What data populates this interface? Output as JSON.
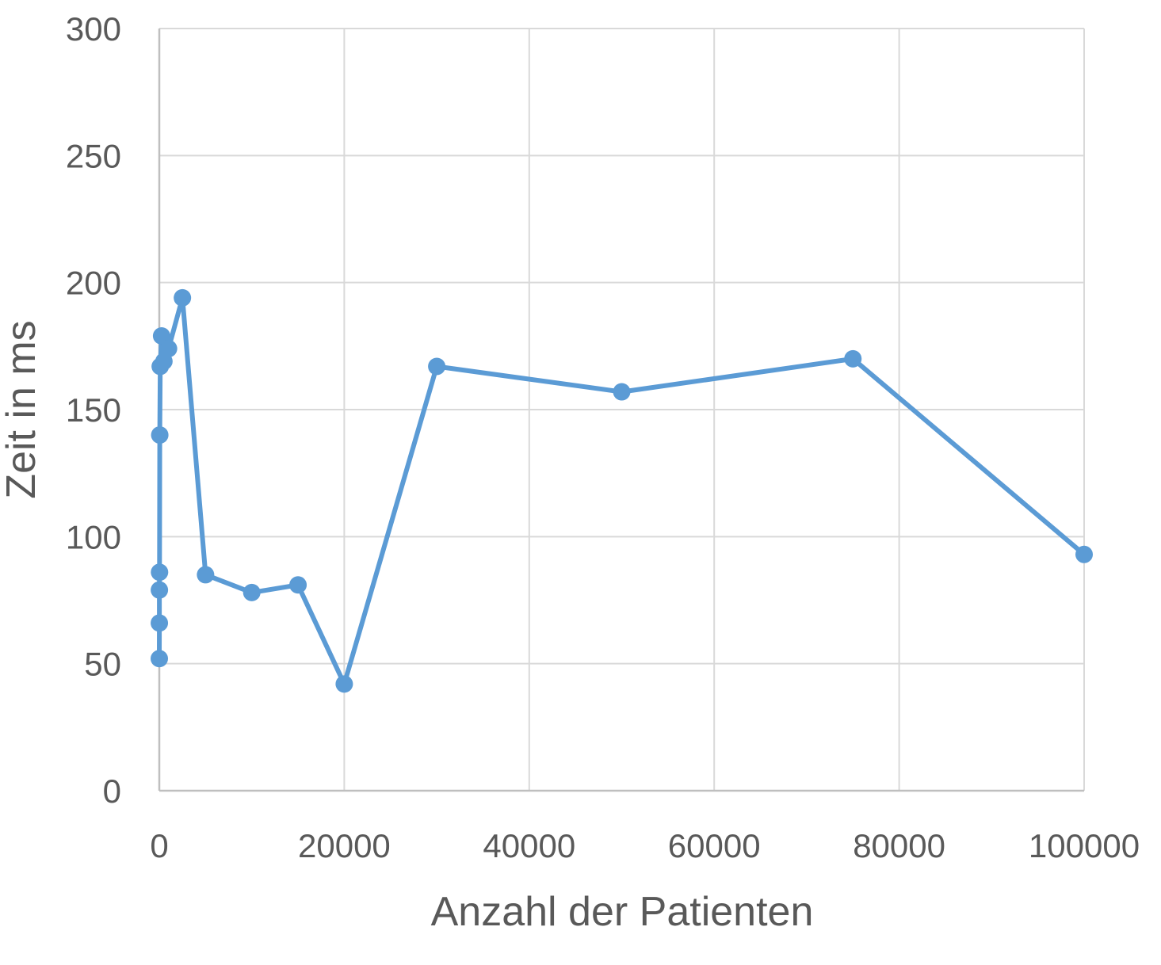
{
  "chart_data": {
    "type": "scatter",
    "title": "",
    "xlabel": "Anzahl der Patienten",
    "ylabel": "Zeit in ms",
    "xlim": [
      0,
      100000
    ],
    "ylim": [
      0,
      300
    ],
    "xticks": [
      0,
      20000,
      40000,
      60000,
      80000,
      100000
    ],
    "yticks": [
      0,
      50,
      100,
      150,
      200,
      250,
      300
    ],
    "x_tick_labels": [
      "0",
      "20000",
      "40000",
      "60000",
      "80000",
      "100000"
    ],
    "y_tick_labels": [
      "0",
      "50",
      "100",
      "150",
      "200",
      "250",
      "300"
    ],
    "grid": true,
    "legend": "none",
    "style": "scatter with straight lines and markers",
    "series": [
      {
        "color": "#5b9bd5",
        "points": [
          {
            "x": 1,
            "y": 52
          },
          {
            "x": 5,
            "y": 66
          },
          {
            "x": 10,
            "y": 79
          },
          {
            "x": 25,
            "y": 86
          },
          {
            "x": 50,
            "y": 140
          },
          {
            "x": 100,
            "y": 167
          },
          {
            "x": 250,
            "y": 179
          },
          {
            "x": 500,
            "y": 169
          },
          {
            "x": 1000,
            "y": 174
          },
          {
            "x": 2500,
            "y": 194
          },
          {
            "x": 5000,
            "y": 85
          },
          {
            "x": 10000,
            "y": 78
          },
          {
            "x": 15000,
            "y": 81
          },
          {
            "x": 20000,
            "y": 42
          },
          {
            "x": 30000,
            "y": 167
          },
          {
            "x": 50000,
            "y": 157
          },
          {
            "x": 75000,
            "y": 170
          },
          {
            "x": 100000,
            "y": 93
          }
        ]
      }
    ]
  }
}
